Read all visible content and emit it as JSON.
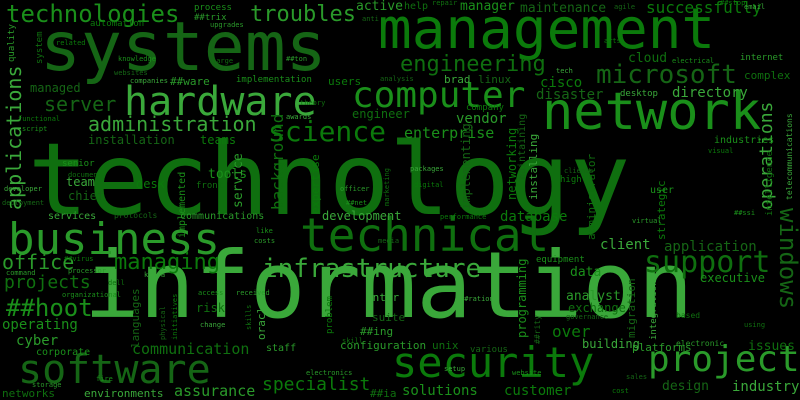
{
  "colors": {
    "background": "#000000",
    "palette": [
      "#0b7a0b",
      "#1a8f1a",
      "#2a9a2a",
      "#0f6f0f",
      "#3aa83a",
      "#156515"
    ]
  },
  "words": [
    {
      "text": "technology"
    },
    {
      "text": "information"
    },
    {
      "text": "systems"
    },
    {
      "text": "management"
    },
    {
      "text": "network"
    },
    {
      "text": "business"
    },
    {
      "text": "technical"
    },
    {
      "text": "hardware"
    },
    {
      "text": "software"
    },
    {
      "text": "security"
    },
    {
      "text": "computer"
    },
    {
      "text": "project"
    },
    {
      "text": "support"
    },
    {
      "text": "infrastructure"
    },
    {
      "text": "microsoft"
    },
    {
      "text": "science"
    },
    {
      "text": "technologies"
    },
    {
      "text": "troubles"
    },
    {
      "text": "engineering"
    },
    {
      "text": "administration"
    },
    {
      "text": "windows"
    },
    {
      "text": "managing"
    },
    {
      "text": "##hoot"
    },
    {
      "text": "office"
    },
    {
      "text": "projects"
    },
    {
      "text": "applications"
    },
    {
      "text": "server"
    },
    {
      "text": "specialist"
    },
    {
      "text": "solutions"
    },
    {
      "text": "assurance"
    },
    {
      "text": "communication"
    },
    {
      "text": "operations"
    },
    {
      "text": "maintenance"
    },
    {
      "text": "successfully"
    },
    {
      "text": "manager"
    },
    {
      "text": "active"
    },
    {
      "text": "cloud"
    },
    {
      "text": "directory"
    },
    {
      "text": "disaster"
    },
    {
      "text": "cisco"
    },
    {
      "text": "enterprise"
    },
    {
      "text": "vendor"
    },
    {
      "text": "engineer"
    },
    {
      "text": "client"
    },
    {
      "text": "application"
    },
    {
      "text": "database"
    },
    {
      "text": "data"
    },
    {
      "text": "analyst"
    },
    {
      "text": "exchange"
    },
    {
      "text": "industry"
    },
    {
      "text": "design"
    },
    {
      "text": "customer"
    },
    {
      "text": "operating"
    },
    {
      "text": "cyber"
    },
    {
      "text": "networks"
    },
    {
      "text": "environments"
    },
    {
      "text": "installation"
    },
    {
      "text": "teams"
    },
    {
      "text": "tools"
    },
    {
      "text": "service"
    },
    {
      "text": "background"
    },
    {
      "text": "development"
    },
    {
      "text": "implementing"
    },
    {
      "text": "networking"
    },
    {
      "text": "programming"
    },
    {
      "text": "configuration"
    },
    {
      "text": "unix"
    },
    {
      "text": "team"
    },
    {
      "text": "chief"
    },
    {
      "text": "desk"
    },
    {
      "text": "executive"
    },
    {
      "text": "platforms"
    },
    {
      "text": "issues"
    },
    {
      "text": "building"
    },
    {
      "text": "managed"
    },
    {
      "text": "automation"
    },
    {
      "text": "process"
    },
    {
      "text": "##trix"
    },
    {
      "text": "help"
    },
    {
      "text": "brad"
    },
    {
      "text": "linux"
    },
    {
      "text": "users"
    },
    {
      "text": "implementation"
    },
    {
      "text": "##ware"
    },
    {
      "text": "administrator"
    },
    {
      "text": "installing"
    },
    {
      "text": "maintaining"
    },
    {
      "text": "strategic"
    },
    {
      "text": "industries"
    },
    {
      "text": "##ing"
    },
    {
      "text": "##ia"
    },
    {
      "text": "inter"
    },
    {
      "text": "suite"
    },
    {
      "text": "over"
    },
    {
      "text": "corporate"
    },
    {
      "text": "staff"
    },
    {
      "text": "risk"
    },
    {
      "text": "oracle"
    },
    {
      "text": "languages"
    },
    {
      "text": "expertise"
    },
    {
      "text": "implemented"
    },
    {
      "text": "communications"
    },
    {
      "text": "front"
    },
    {
      "text": "services"
    },
    {
      "text": "protocols"
    },
    {
      "text": "company"
    },
    {
      "text": "senior"
    },
    {
      "text": "quality"
    },
    {
      "text": "system"
    },
    {
      "text": "integration"
    },
    {
      "text": "migration"
    },
    {
      "text": "high"
    },
    {
      "text": "user"
    },
    {
      "text": "internet"
    },
    {
      "text": "complex"
    },
    {
      "text": "desktop"
    },
    {
      "text": "various"
    },
    {
      "text": "problem"
    },
    {
      "text": "equipment"
    },
    {
      "text": "electronic"
    },
    {
      "text": "intelligence"
    },
    {
      "text": "telecommunications"
    },
    {
      "text": "governance"
    },
    {
      "text": "related"
    },
    {
      "text": "knowledge"
    },
    {
      "text": "virtual"
    },
    {
      "text": "based"
    },
    {
      "text": "tech"
    },
    {
      "text": "media"
    },
    {
      "text": "digital"
    },
    {
      "text": "website"
    },
    {
      "text": "electronics"
    },
    {
      "text": "skill"
    },
    {
      "text": "setup"
    },
    {
      "text": "sales"
    },
    {
      "text": "cost"
    },
    {
      "text": "fire"
    },
    {
      "text": "storage"
    },
    {
      "text": "using"
    },
    {
      "text": "##ration"
    },
    {
      "text": "##rity"
    },
    {
      "text": "##virus"
    },
    {
      "text": "##net"
    },
    {
      "text": "##ton"
    },
    {
      "text": "document"
    },
    {
      "text": "developer"
    },
    {
      "text": "deployment"
    },
    {
      "text": "functional"
    },
    {
      "text": "script"
    },
    {
      "text": "upgrades"
    },
    {
      "text": "large"
    },
    {
      "text": "companies"
    },
    {
      "text": "agile"
    },
    {
      "text": "arts"
    },
    {
      "text": "electrical"
    },
    {
      "text": "officer"
    },
    {
      "text": "marketing"
    },
    {
      "text": "packages"
    },
    {
      "text": "clients"
    },
    {
      "text": "performance"
    },
    {
      "text": "access"
    },
    {
      "text": "received"
    },
    {
      "text": "skills"
    },
    {
      "text": "change"
    },
    {
      "text": "physical"
    },
    {
      "text": "initiatives"
    },
    {
      "text": "organizational"
    },
    {
      "text": "processor"
    },
    {
      "text": "theory"
    },
    {
      "text": "awards"
    },
    {
      "text": "analysis"
    },
    {
      "text": "visual"
    },
    {
      "text": "like"
    },
    {
      "text": "costs"
    },
    {
      "text": "repair"
    },
    {
      "text": "email"
    },
    {
      "text": "anti"
    },
    {
      "text": "##stop"
    },
    {
      "text": "##ssi"
    },
    {
      "text": "command"
    },
    {
      "text": "dell"
    },
    {
      "text": "kenya"
    },
    {
      "text": "websites"
    }
  ]
}
